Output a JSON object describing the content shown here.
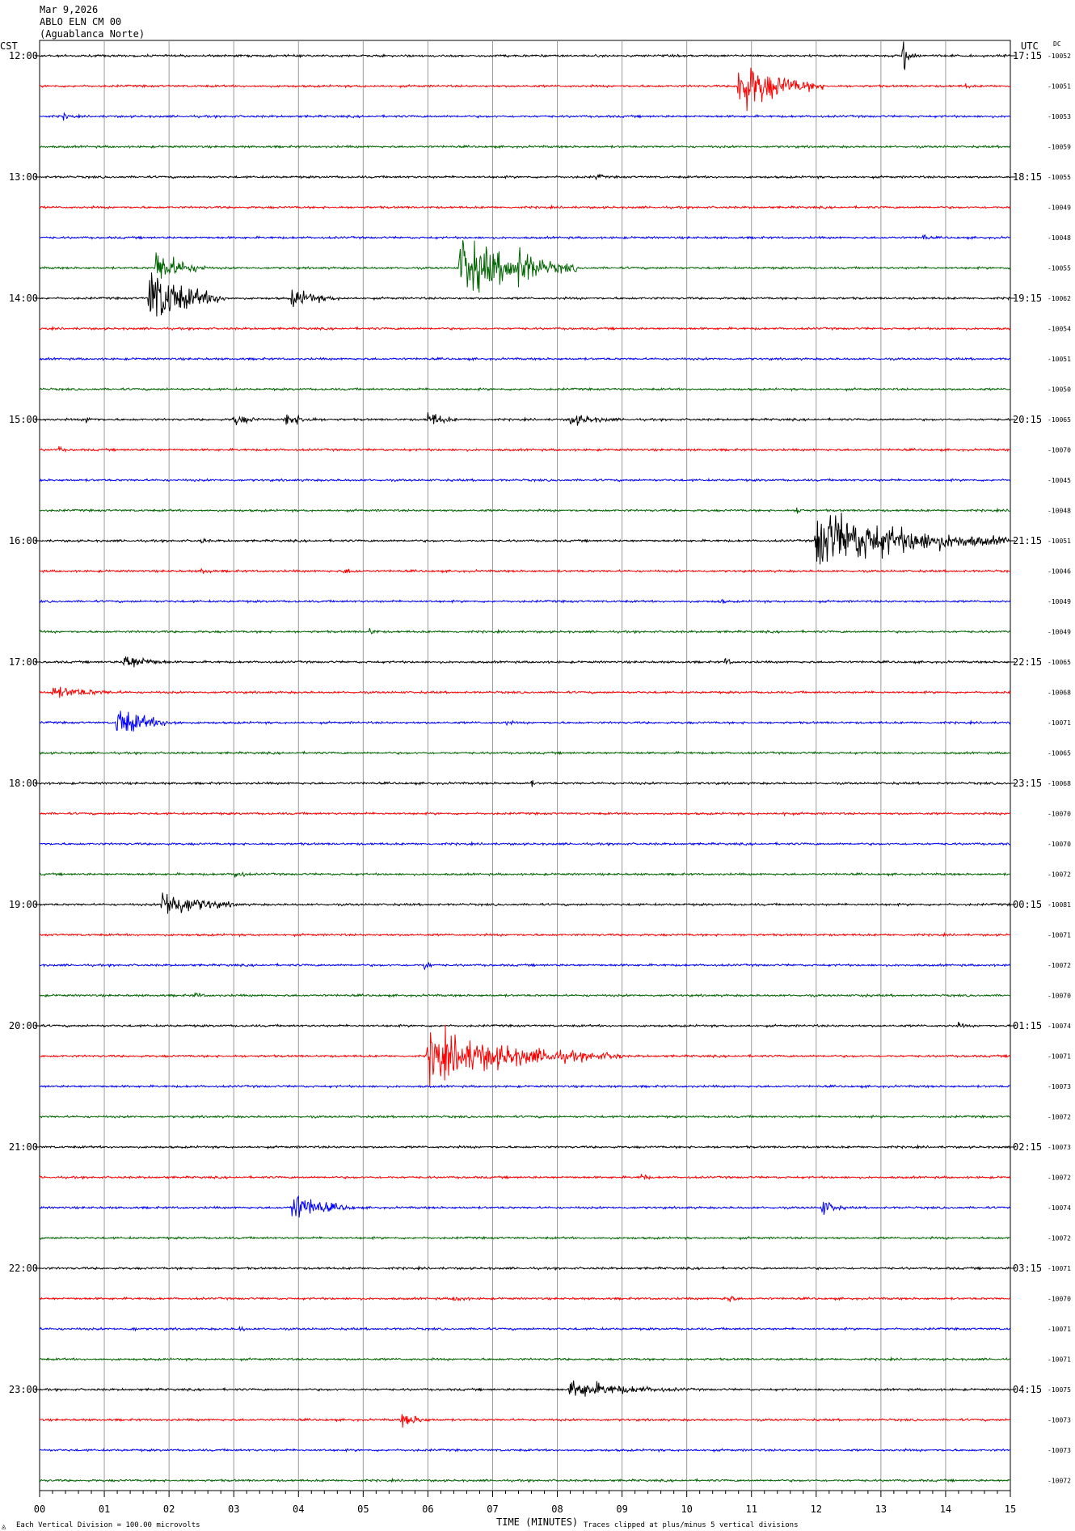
{
  "header": {
    "date": "Mar 9,2026",
    "station": "ABLO ELN CM 00",
    "location": "(Aguablanca Norte)",
    "left_tz": "CST",
    "right_tz": "UTC",
    "dc_label": "DC"
  },
  "footer": {
    "scale_note": "Each Vertical Division =  100.00 microvolts",
    "xlabel": "TIME (MINUTES)",
    "clip_note": "Traces clipped at plus/minus 5 vertical divisions"
  },
  "colors": {
    "trace_cycle": [
      "#000000",
      "#ff0000",
      "#0000ff",
      "#006400"
    ],
    "grid": "#9a9a9a",
    "axis": "#000000"
  },
  "chart_data": {
    "type": "line",
    "title": "",
    "xlabel": "TIME (MINUTES)",
    "ylabel": "",
    "xlim": [
      0,
      15
    ],
    "x_ticks": [
      "00",
      "01",
      "02",
      "03",
      "04",
      "05",
      "06",
      "07",
      "08",
      "09",
      "10",
      "11",
      "12",
      "13",
      "14",
      "15"
    ],
    "trace_count": 48,
    "trace_interval_minutes": 15,
    "start_cst": "12:00",
    "cst_hour_labels": [
      "12:00",
      "13:00",
      "14:00",
      "15:00",
      "16:00",
      "17:00",
      "18:00",
      "19:00",
      "20:00",
      "21:00",
      "22:00",
      "23:00"
    ],
    "utc_hour_labels": [
      "17:15",
      "18:15",
      "19:15",
      "20:15",
      "21:15",
      "22:15",
      "23:15",
      "00:15",
      "01:15",
      "02:15",
      "03:15",
      "04:15"
    ],
    "dc_offsets": [
      "-10052",
      "-10051",
      "-10053",
      "-10059",
      "-10055",
      "-10049",
      "-10048",
      "-10055",
      "-10062",
      "-10054",
      "-10051",
      "-10050",
      "-10065",
      "-10070",
      "-10045",
      "-10048",
      "-10051",
      "-10046",
      "-10049",
      "-10049",
      "-10065",
      "-10068",
      "-10071",
      "-10065",
      "-10068",
      "-10070",
      "-10070",
      "-10072",
      "-10081",
      "-10071",
      "-10072",
      "-10070",
      "-10074",
      "-10071",
      "-10073",
      "-10072",
      "-10073",
      "-10072",
      "-10074",
      "-10072",
      "-10071",
      "-10070",
      "-10071",
      "-10071",
      "-10075",
      "-10073",
      "-10073",
      "-10072"
    ],
    "clip_divisions": 5,
    "events": [
      {
        "trace": 0,
        "minute": 13.35,
        "amp": 3.0,
        "dur": 0.25
      },
      {
        "trace": 1,
        "minute": 10.8,
        "amp": 4.5,
        "dur": 1.3
      },
      {
        "trace": 1,
        "minute": 14.3,
        "amp": 0.5,
        "dur": 0.3
      },
      {
        "trace": 2,
        "minute": 0.35,
        "amp": 0.6,
        "dur": 0.4
      },
      {
        "trace": 4,
        "minute": 8.6,
        "amp": 0.6,
        "dur": 0.3
      },
      {
        "trace": 6,
        "minute": 13.65,
        "amp": 0.7,
        "dur": 0.2
      },
      {
        "trace": 7,
        "minute": 6.5,
        "amp": 5.0,
        "dur": 1.8
      },
      {
        "trace": 7,
        "minute": 7.4,
        "amp": 3.5,
        "dur": 0.8
      },
      {
        "trace": 7,
        "minute": 1.8,
        "amp": 3.0,
        "dur": 0.8
      },
      {
        "trace": 8,
        "minute": 1.7,
        "amp": 5.0,
        "dur": 1.2
      },
      {
        "trace": 8,
        "minute": 3.9,
        "amp": 1.5,
        "dur": 0.9
      },
      {
        "trace": 12,
        "minute": 0.7,
        "amp": 0.7,
        "dur": 0.4
      },
      {
        "trace": 12,
        "minute": 3.0,
        "amp": 1.0,
        "dur": 0.6
      },
      {
        "trace": 12,
        "minute": 3.8,
        "amp": 1.2,
        "dur": 0.7
      },
      {
        "trace": 12,
        "minute": 6.0,
        "amp": 1.5,
        "dur": 0.5
      },
      {
        "trace": 12,
        "minute": 8.2,
        "amp": 1.0,
        "dur": 1.0
      },
      {
        "trace": 13,
        "minute": 0.3,
        "amp": 0.6,
        "dur": 0.2
      },
      {
        "trace": 15,
        "minute": 11.7,
        "amp": 0.7,
        "dur": 0.3
      },
      {
        "trace": 16,
        "minute": 12.0,
        "amp": 5.0,
        "dur": 3.0
      },
      {
        "trace": 16,
        "minute": 2.5,
        "amp": 0.5,
        "dur": 0.3
      },
      {
        "trace": 17,
        "minute": 2.5,
        "amp": 0.6,
        "dur": 0.4
      },
      {
        "trace": 17,
        "minute": 4.7,
        "amp": 0.5,
        "dur": 0.6
      },
      {
        "trace": 18,
        "minute": 10.5,
        "amp": 0.6,
        "dur": 0.2
      },
      {
        "trace": 19,
        "minute": 5.1,
        "amp": 0.6,
        "dur": 0.3
      },
      {
        "trace": 20,
        "minute": 1.3,
        "amp": 1.5,
        "dur": 0.8
      },
      {
        "trace": 20,
        "minute": 10.6,
        "amp": 0.8,
        "dur": 0.2
      },
      {
        "trace": 21,
        "minute": 0.2,
        "amp": 1.0,
        "dur": 1.5
      },
      {
        "trace": 22,
        "minute": 1.2,
        "amp": 2.5,
        "dur": 1.0
      },
      {
        "trace": 22,
        "minute": 7.2,
        "amp": 0.5,
        "dur": 0.3
      },
      {
        "trace": 24,
        "minute": 7.6,
        "amp": 0.7,
        "dur": 0.1
      },
      {
        "trace": 25,
        "minute": 11.5,
        "amp": 0.4,
        "dur": 0.4
      },
      {
        "trace": 27,
        "minute": 3.0,
        "amp": 0.8,
        "dur": 0.4
      },
      {
        "trace": 28,
        "minute": 1.9,
        "amp": 2.5,
        "dur": 1.2
      },
      {
        "trace": 30,
        "minute": 5.95,
        "amp": 1.0,
        "dur": 0.2
      },
      {
        "trace": 31,
        "minute": 2.4,
        "amp": 0.6,
        "dur": 0.3
      },
      {
        "trace": 31,
        "minute": 12.7,
        "amp": 0.5,
        "dur": 0.2
      },
      {
        "trace": 32,
        "minute": 14.2,
        "amp": 0.5,
        "dur": 0.3
      },
      {
        "trace": 33,
        "minute": 6.0,
        "amp": 4.0,
        "dur": 3.0
      },
      {
        "trace": 37,
        "minute": 9.3,
        "amp": 0.9,
        "dur": 0.2
      },
      {
        "trace": 38,
        "minute": 3.9,
        "amp": 2.5,
        "dur": 1.0
      },
      {
        "trace": 38,
        "minute": 12.1,
        "amp": 1.5,
        "dur": 0.4
      },
      {
        "trace": 41,
        "minute": 6.4,
        "amp": 0.6,
        "dur": 0.5
      },
      {
        "trace": 41,
        "minute": 10.6,
        "amp": 1.0,
        "dur": 0.3
      },
      {
        "trace": 42,
        "minute": 1.4,
        "amp": 0.5,
        "dur": 0.3
      },
      {
        "trace": 42,
        "minute": 3.1,
        "amp": 0.5,
        "dur": 0.3
      },
      {
        "trace": 44,
        "minute": 8.2,
        "amp": 1.5,
        "dur": 2.0
      },
      {
        "trace": 45,
        "minute": 5.6,
        "amp": 1.2,
        "dur": 0.6
      }
    ]
  }
}
